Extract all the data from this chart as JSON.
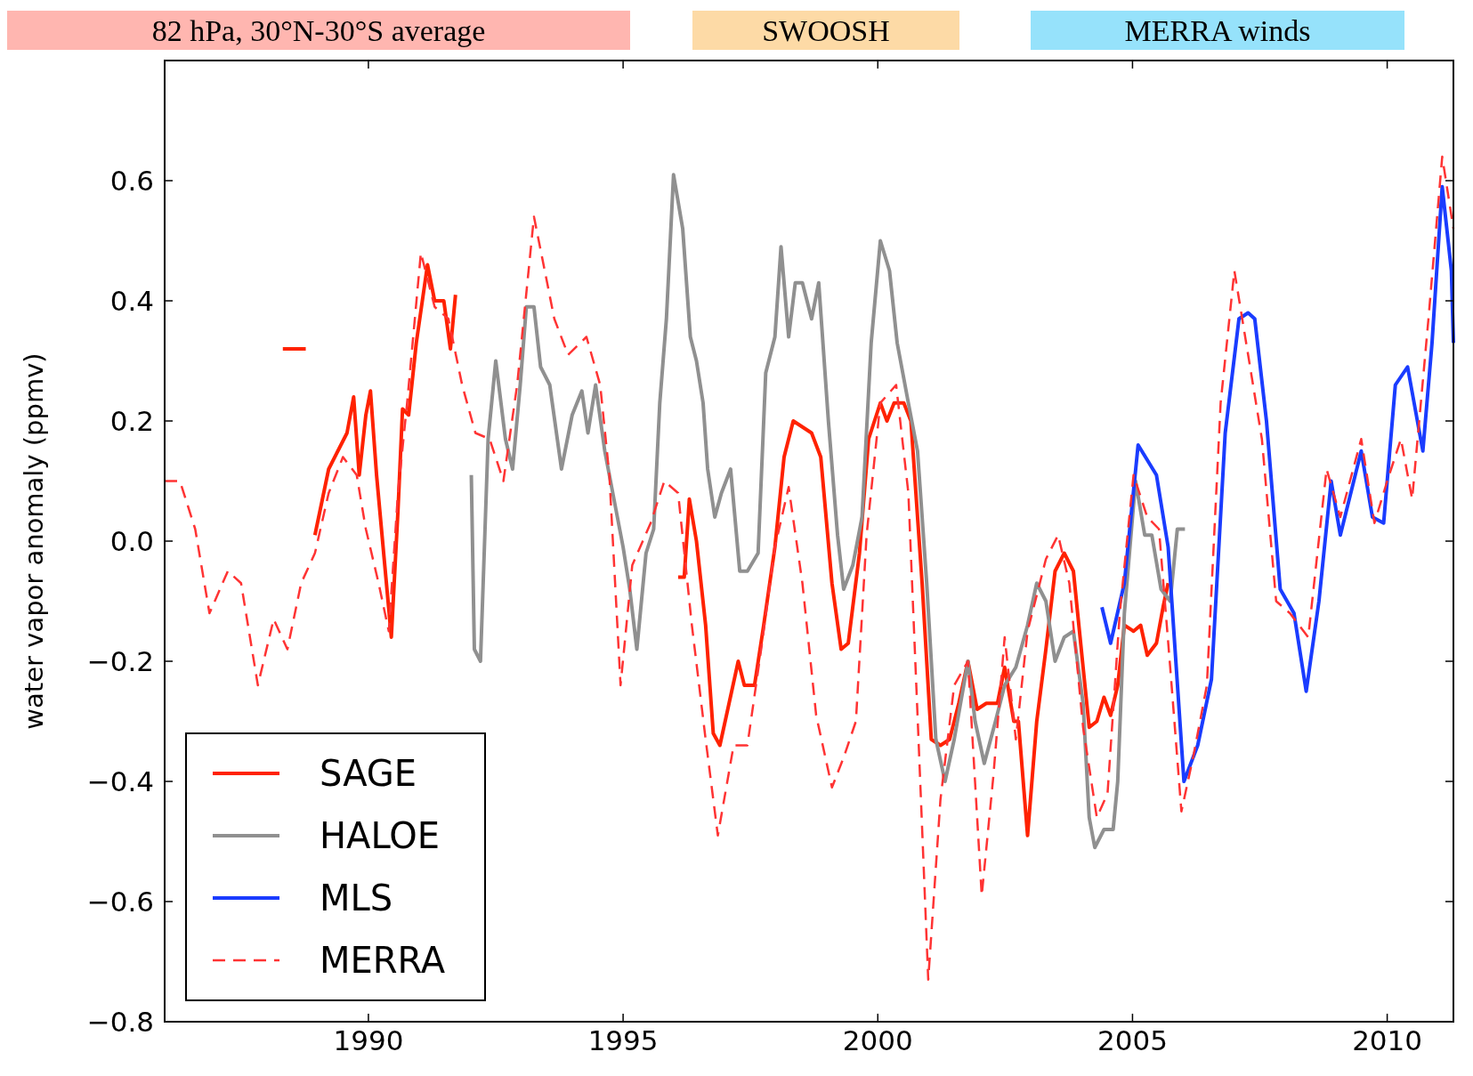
{
  "chart_data": {
    "type": "line",
    "ylabel": "water vapor anomaly (ppmv)",
    "annotations": [
      "82 hPa, 30°N-30°S average",
      "SWOOSH",
      "MERRA winds"
    ],
    "xlim": [
      1986,
      2011.3
    ],
    "xticks": [
      1990,
      1995,
      2000,
      2005,
      2010
    ],
    "ylim": [
      -0.8,
      0.8
    ],
    "yticks": [
      {
        "value": -0.8,
        "label": "−0.8"
      },
      {
        "value": -0.6,
        "label": "−0.6"
      },
      {
        "value": -0.4,
        "label": "−0.4"
      },
      {
        "value": -0.2,
        "label": "−0.2"
      },
      {
        "value": 0,
        "label": "0.0"
      },
      0.2,
      0.4,
      0.6
    ],
    "grid": false,
    "legend": "bottom left",
    "series": [
      {
        "name": "SAGE",
        "color": "#ff2200",
        "line_style": "solid",
        "x": [
          1988.32,
          1988.77,
          null,
          1988.95,
          1989.22,
          1989.4,
          1989.58,
          1989.71,
          1989.82,
          1989.95,
          1990.04,
          1990.16,
          1990.31,
          1990.45,
          1990.58,
          1990.67,
          1990.79,
          1990.94,
          1991.16,
          1991.3,
          1991.48,
          1991.61,
          1991.71,
          null,
          1996.08,
          1996.2,
          1996.3,
          1996.44,
          1996.62,
          1996.77,
          1996.9,
          1997.08,
          1997.26,
          1997.38,
          1997.58,
          1997.76,
          1997.98,
          1998.16,
          1998.34,
          1998.52,
          1998.7,
          1998.88,
          1999.1,
          1999.28,
          1999.42,
          1999.64,
          1999.82,
          2000.05,
          2000.18,
          2000.32,
          2000.51,
          2000.65,
          2000.87,
          2001.05,
          2001.23,
          2001.41,
          2001.59,
          2001.77,
          2001.95,
          2002.13,
          2002.35,
          2002.49,
          2002.67,
          2002.76,
          2002.94,
          2003.12,
          2003.3,
          2003.48,
          2003.66,
          2003.84,
          2004.03,
          2004.15,
          2004.3,
          2004.44,
          2004.57,
          2004.71,
          2004.84,
          2005.02,
          2005.16,
          2005.29,
          2005.47,
          2005.6,
          2005.7
        ],
        "values": [
          0.32,
          0.32,
          null,
          0.01,
          0.12,
          0.15,
          0.18,
          0.24,
          0.11,
          0.21,
          0.25,
          0.11,
          -0.03,
          -0.16,
          0.05,
          0.22,
          0.21,
          0.33,
          0.46,
          0.4,
          0.4,
          0.32,
          0.41,
          null,
          -0.06,
          -0.06,
          0.07,
          0.0,
          -0.14,
          -0.32,
          -0.34,
          -0.27,
          -0.2,
          -0.24,
          -0.24,
          -0.14,
          -0.01,
          0.14,
          0.2,
          0.19,
          0.18,
          0.14,
          -0.07,
          -0.18,
          -0.17,
          -0.02,
          0.17,
          0.23,
          0.2,
          0.23,
          0.23,
          0.2,
          -0.07,
          -0.33,
          -0.34,
          -0.33,
          -0.27,
          -0.2,
          -0.28,
          -0.27,
          -0.27,
          -0.21,
          -0.3,
          -0.3,
          -0.49,
          -0.3,
          -0.18,
          -0.05,
          -0.02,
          -0.05,
          -0.21,
          -0.31,
          -0.3,
          -0.26,
          -0.29,
          -0.24,
          -0.14,
          -0.15,
          -0.14,
          -0.19,
          -0.17,
          -0.11,
          -0.07
        ]
      },
      {
        "name": "HALOE",
        "color": "#909090",
        "line_style": "solid",
        "x": [
          1992.02,
          1992.08,
          1992.2,
          1992.35,
          1992.5,
          1992.69,
          1992.83,
          1992.98,
          1993.1,
          1993.25,
          1993.38,
          1993.56,
          1993.79,
          1994.0,
          1994.19,
          1994.31,
          1994.46,
          1994.64,
          1994.82,
          1995.0,
          1995.13,
          1995.27,
          1995.45,
          1995.6,
          1995.72,
          1995.85,
          1995.99,
          1996.17,
          1996.32,
          1996.44,
          1996.57,
          1996.66,
          1996.8,
          1996.93,
          1997.11,
          1997.29,
          1997.44,
          1997.65,
          1997.8,
          1997.98,
          1998.1,
          1998.25,
          1998.38,
          1998.52,
          1998.7,
          1998.84,
          1999.03,
          1999.21,
          1999.33,
          1999.51,
          1999.69,
          1999.87,
          2000.05,
          2000.23,
          2000.38,
          2000.6,
          2000.78,
          2000.96,
          2001.14,
          2001.32,
          2001.5,
          2001.77,
          2001.91,
          2002.09,
          2002.31,
          2002.49,
          2002.71,
          2002.94,
          2003.12,
          2003.3,
          2003.48,
          2003.66,
          2003.84,
          2004.03,
          2004.15,
          2004.26,
          2004.44,
          2004.62,
          2004.71,
          2004.84,
          2005.06,
          2005.24,
          2005.38,
          2005.56,
          2005.74,
          2005.88,
          2006.03
        ],
        "values": [
          0.11,
          -0.18,
          -0.2,
          0.17,
          0.3,
          0.17,
          0.12,
          0.26,
          0.39,
          0.39,
          0.29,
          0.26,
          0.12,
          0.21,
          0.25,
          0.18,
          0.26,
          0.15,
          0.07,
          -0.01,
          -0.08,
          -0.18,
          -0.02,
          0.02,
          0.23,
          0.37,
          0.61,
          0.52,
          0.34,
          0.3,
          0.23,
          0.12,
          0.04,
          0.08,
          0.12,
          -0.05,
          -0.05,
          -0.02,
          0.28,
          0.34,
          0.49,
          0.34,
          0.43,
          0.43,
          0.37,
          0.43,
          0.2,
          0.01,
          -0.08,
          -0.04,
          0.04,
          0.33,
          0.5,
          0.45,
          0.33,
          0.23,
          0.15,
          -0.07,
          -0.33,
          -0.4,
          -0.33,
          -0.2,
          -0.3,
          -0.37,
          -0.3,
          -0.24,
          -0.21,
          -0.14,
          -0.07,
          -0.1,
          -0.2,
          -0.16,
          -0.15,
          -0.27,
          -0.46,
          -0.51,
          -0.48,
          -0.48,
          -0.4,
          -0.12,
          0.1,
          0.01,
          0.01,
          -0.08,
          -0.1,
          0.02,
          0.02
        ]
      },
      {
        "name": "MLS",
        "color": "#1a3cff",
        "line_style": "solid",
        "x": [
          2004.4,
          2004.57,
          2004.84,
          2005.11,
          2005.47,
          2005.7,
          2006.01,
          2006.28,
          2006.55,
          2006.82,
          2007.09,
          2007.27,
          2007.4,
          2007.63,
          2007.9,
          2008.17,
          2008.41,
          2008.66,
          2008.9,
          2009.08,
          2009.49,
          2009.71,
          2009.93,
          2010.16,
          2010.4,
          2010.7,
          2010.88,
          2011.08,
          2011.26,
          2011.3
        ],
        "values": [
          -0.11,
          -0.17,
          -0.07,
          0.16,
          0.11,
          -0.01,
          -0.4,
          -0.34,
          -0.23,
          0.18,
          0.37,
          0.38,
          0.37,
          0.2,
          -0.08,
          -0.12,
          -0.25,
          -0.1,
          0.1,
          0.01,
          0.15,
          0.04,
          0.03,
          0.26,
          0.29,
          0.15,
          0.33,
          0.59,
          0.45,
          0.33
        ]
      },
      {
        "name": "MERRA",
        "color": "#ff3333",
        "line_style": "dashed",
        "x": [
          1986.0,
          1986.3,
          1986.6,
          1986.88,
          1987.24,
          1987.5,
          1987.83,
          1988.14,
          1988.41,
          1988.68,
          1988.95,
          1989.22,
          1989.5,
          1989.77,
          1989.95,
          1990.2,
          1990.4,
          1990.58,
          1990.76,
          1991.03,
          1991.3,
          1991.57,
          1991.84,
          1992.1,
          1992.38,
          1992.65,
          1992.92,
          1993.25,
          1993.65,
          1993.92,
          1994.28,
          1994.55,
          1994.73,
          1994.95,
          1995.18,
          1995.54,
          1995.81,
          1996.08,
          1996.35,
          1996.62,
          1996.86,
          1997.17,
          1997.44,
          1997.71,
          1997.98,
          1998.25,
          1998.52,
          1998.79,
          1999.1,
          1999.33,
          1999.57,
          1999.78,
          2000.05,
          2000.36,
          2000.6,
          2000.78,
          2000.99,
          2001.23,
          2001.5,
          2001.77,
          2002.04,
          2002.27,
          2002.49,
          2002.71,
          2002.94,
          2003.3,
          2003.54,
          2003.76,
          2004.03,
          2004.3,
          2004.51,
          2004.75,
          2005.02,
          2005.29,
          2005.52,
          2005.74,
          2005.96,
          2006.19,
          2006.46,
          2006.73,
          2007.0,
          2007.27,
          2007.54,
          2007.82,
          2008.09,
          2008.45,
          2008.81,
          2009.08,
          2009.49,
          2009.75,
          2010.0,
          2010.27,
          2010.49,
          2010.81,
          2011.08,
          2011.3
        ],
        "values": [
          0.1,
          0.1,
          0.02,
          -0.12,
          -0.05,
          -0.07,
          -0.24,
          -0.13,
          -0.18,
          -0.07,
          -0.02,
          0.08,
          0.14,
          0.11,
          0.02,
          -0.07,
          -0.15,
          0.08,
          0.23,
          0.48,
          0.39,
          0.37,
          0.26,
          0.18,
          0.17,
          0.1,
          0.26,
          0.54,
          0.37,
          0.31,
          0.34,
          0.26,
          0.11,
          -0.24,
          -0.04,
          0.03,
          0.1,
          0.08,
          -0.14,
          -0.33,
          -0.49,
          -0.34,
          -0.34,
          -0.18,
          -0.01,
          0.09,
          -0.07,
          -0.29,
          -0.41,
          -0.36,
          -0.3,
          0.01,
          0.23,
          0.26,
          0.08,
          -0.29,
          -0.73,
          -0.43,
          -0.24,
          -0.2,
          -0.59,
          -0.39,
          -0.16,
          -0.33,
          -0.15,
          -0.03,
          0.01,
          -0.07,
          -0.31,
          -0.46,
          -0.42,
          -0.12,
          0.11,
          0.04,
          0.02,
          -0.21,
          -0.45,
          -0.36,
          -0.24,
          0.23,
          0.45,
          0.31,
          0.17,
          -0.1,
          -0.12,
          -0.16,
          0.12,
          0.04,
          0.17,
          0.03,
          0.1,
          0.17,
          0.07,
          0.37,
          0.64,
          0.52
        ]
      }
    ]
  }
}
